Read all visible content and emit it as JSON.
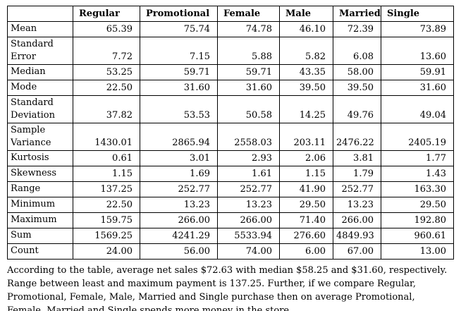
{
  "colors": {
    "background": "#ffffff",
    "text": "#000000",
    "border": "#000000"
  },
  "table": {
    "corner_label": "",
    "columns": [
      "Regular",
      "Promotional",
      "Female",
      "Male",
      "Married",
      "Single"
    ],
    "rows": [
      {
        "label": "Mean",
        "values": [
          "65.39",
          "75.74",
          "74.78",
          "46.10",
          "72.39",
          "73.89"
        ]
      },
      {
        "label": "Standard Error",
        "values": [
          "7.72",
          "7.15",
          "5.88",
          "5.82",
          "6.08",
          "13.60"
        ]
      },
      {
        "label": "Median",
        "values": [
          "53.25",
          "59.71",
          "59.71",
          "43.35",
          "58.00",
          "59.91"
        ]
      },
      {
        "label": "Mode",
        "values": [
          "22.50",
          "31.60",
          "31.60",
          "39.50",
          "39.50",
          "31.60"
        ]
      },
      {
        "label": "Standard Deviation",
        "values": [
          "37.82",
          "53.53",
          "50.58",
          "14.25",
          "49.76",
          "49.04"
        ]
      },
      {
        "label": "Sample Variance",
        "values": [
          "1430.01",
          "2865.94",
          "2558.03",
          "203.11",
          "2476.22",
          "2405.19"
        ]
      },
      {
        "label": "Kurtosis",
        "values": [
          "0.61",
          "3.01",
          "2.93",
          "2.06",
          "3.81",
          "1.77"
        ]
      },
      {
        "label": "Skewness",
        "values": [
          "1.15",
          "1.69",
          "1.61",
          "1.15",
          "1.79",
          "1.43"
        ]
      },
      {
        "label": "Range",
        "values": [
          "137.25",
          "252.77",
          "252.77",
          "41.90",
          "252.77",
          "163.30"
        ]
      },
      {
        "label": "Minimum",
        "values": [
          "22.50",
          "13.23",
          "13.23",
          "29.50",
          "13.23",
          "29.50"
        ]
      },
      {
        "label": "Maximum",
        "values": [
          "159.75",
          "266.00",
          "266.00",
          "71.40",
          "266.00",
          "192.80"
        ]
      },
      {
        "label": "Sum",
        "values": [
          "1569.25",
          "4241.29",
          "5533.94",
          "276.60",
          "4849.93",
          "960.61"
        ]
      },
      {
        "label": "Count",
        "values": [
          "24.00",
          "56.00",
          "74.00",
          "6.00",
          "67.00",
          "13.00"
        ]
      }
    ]
  },
  "paragraph": {
    "lines": [
      "According to the table, average net sales $72.63  with median $58.25 and $31.60, respectively.",
      "Range between least and maximum payment is 137.25. Further, if we compare Regular,",
      "Promotional, Female, Male, Married and Single purchase then on average Promotional,",
      "Female, Married and Single spends more money in the store."
    ]
  }
}
